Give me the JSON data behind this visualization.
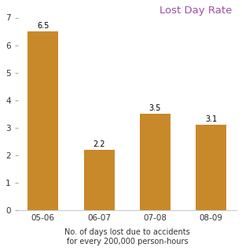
{
  "categories": [
    "05-06",
    "06-07",
    "07-08",
    "08-09"
  ],
  "values": [
    6.5,
    2.2,
    3.5,
    3.1
  ],
  "bar_color": "#C8892A",
  "title": "Lost Day Rate",
  "title_color": "#9B4FA0",
  "xlabel_line1": "No. of days lost due to accidents",
  "xlabel_line2": "for every 200,000 person-hours",
  "ylim": [
    0,
    7
  ],
  "yticks": [
    0,
    1,
    2,
    3,
    4,
    5,
    6,
    7
  ],
  "bar_width": 0.55,
  "label_fontsize": 7.0,
  "title_fontsize": 9.5,
  "xlabel_fontsize": 7.0,
  "tick_fontsize": 7.5,
  "background_color": "#ffffff"
}
